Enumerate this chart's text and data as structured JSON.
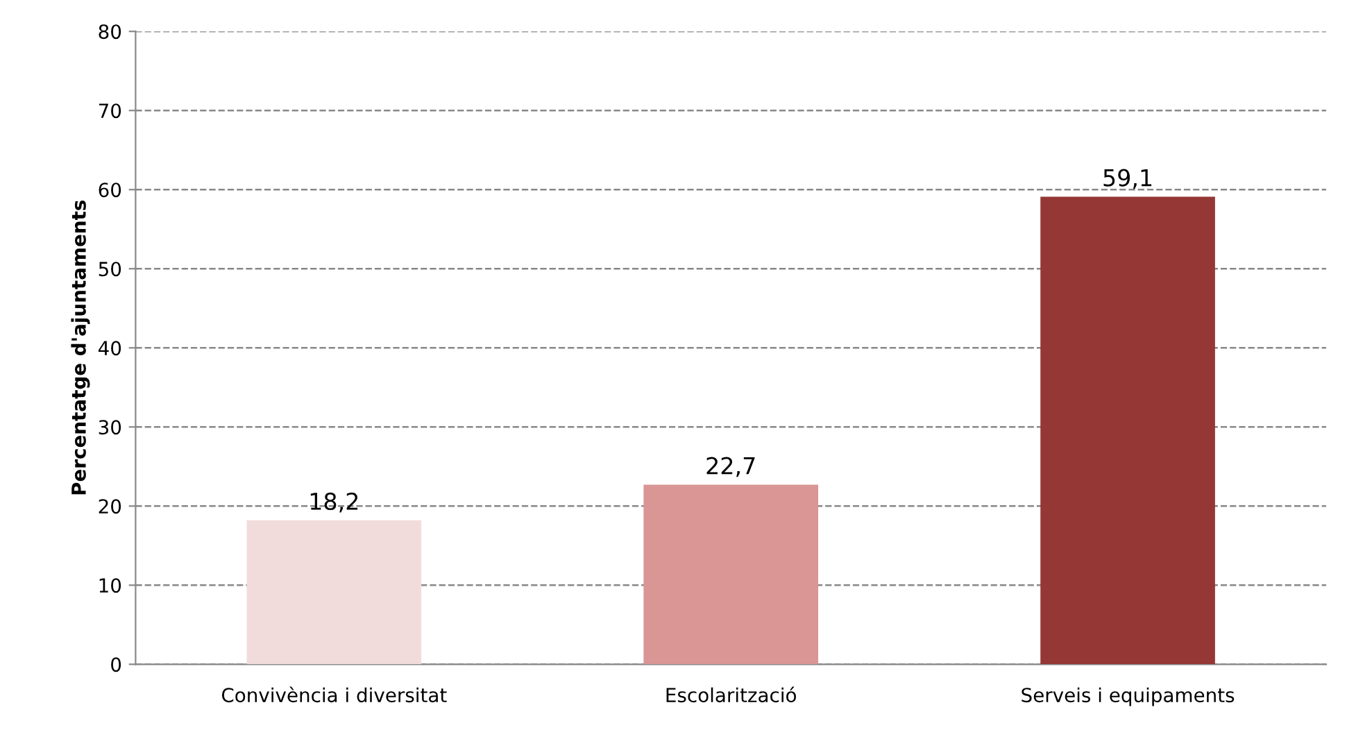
{
  "chart_data": {
    "type": "bar",
    "ylabel": "Percentatge d'ajuntaments",
    "categories": [
      "Convivència i diversitat",
      "Escolarització",
      "Serveis i equipaments"
    ],
    "values": [
      18.2,
      22.7,
      59.1
    ],
    "value_labels": [
      "18,2",
      "22,7",
      "59,1"
    ],
    "colors": [
      "#f2dcdb",
      "#d99694",
      "#953735"
    ],
    "ylim": [
      0,
      80
    ],
    "yticks": [
      0,
      10,
      20,
      30,
      40,
      50,
      60,
      70,
      80
    ],
    "grid": "y",
    "legend": false
  }
}
